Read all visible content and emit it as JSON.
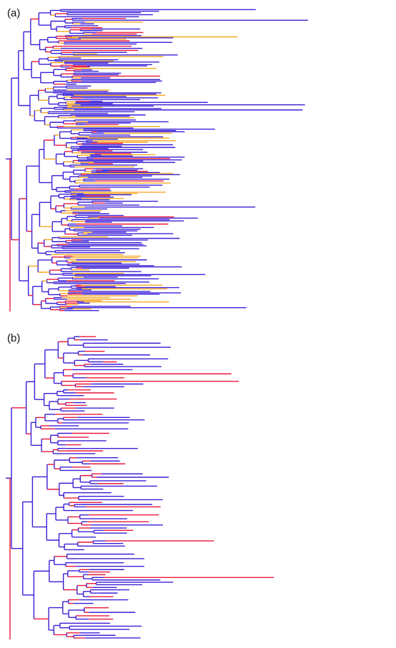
{
  "panels": [
    {
      "id": "a",
      "label": "(a)",
      "colors": [
        "#3a1fd6",
        "#e8183a",
        "#f5a623"
      ],
      "seed": 11,
      "mix": [
        0.62,
        0.18,
        0.2
      ]
    },
    {
      "id": "b",
      "label": "(b)",
      "colors": [
        "#3a1fd6",
        "#e8183a"
      ],
      "seed": 7,
      "mix": [
        0.7,
        0.3
      ]
    }
  ]
}
